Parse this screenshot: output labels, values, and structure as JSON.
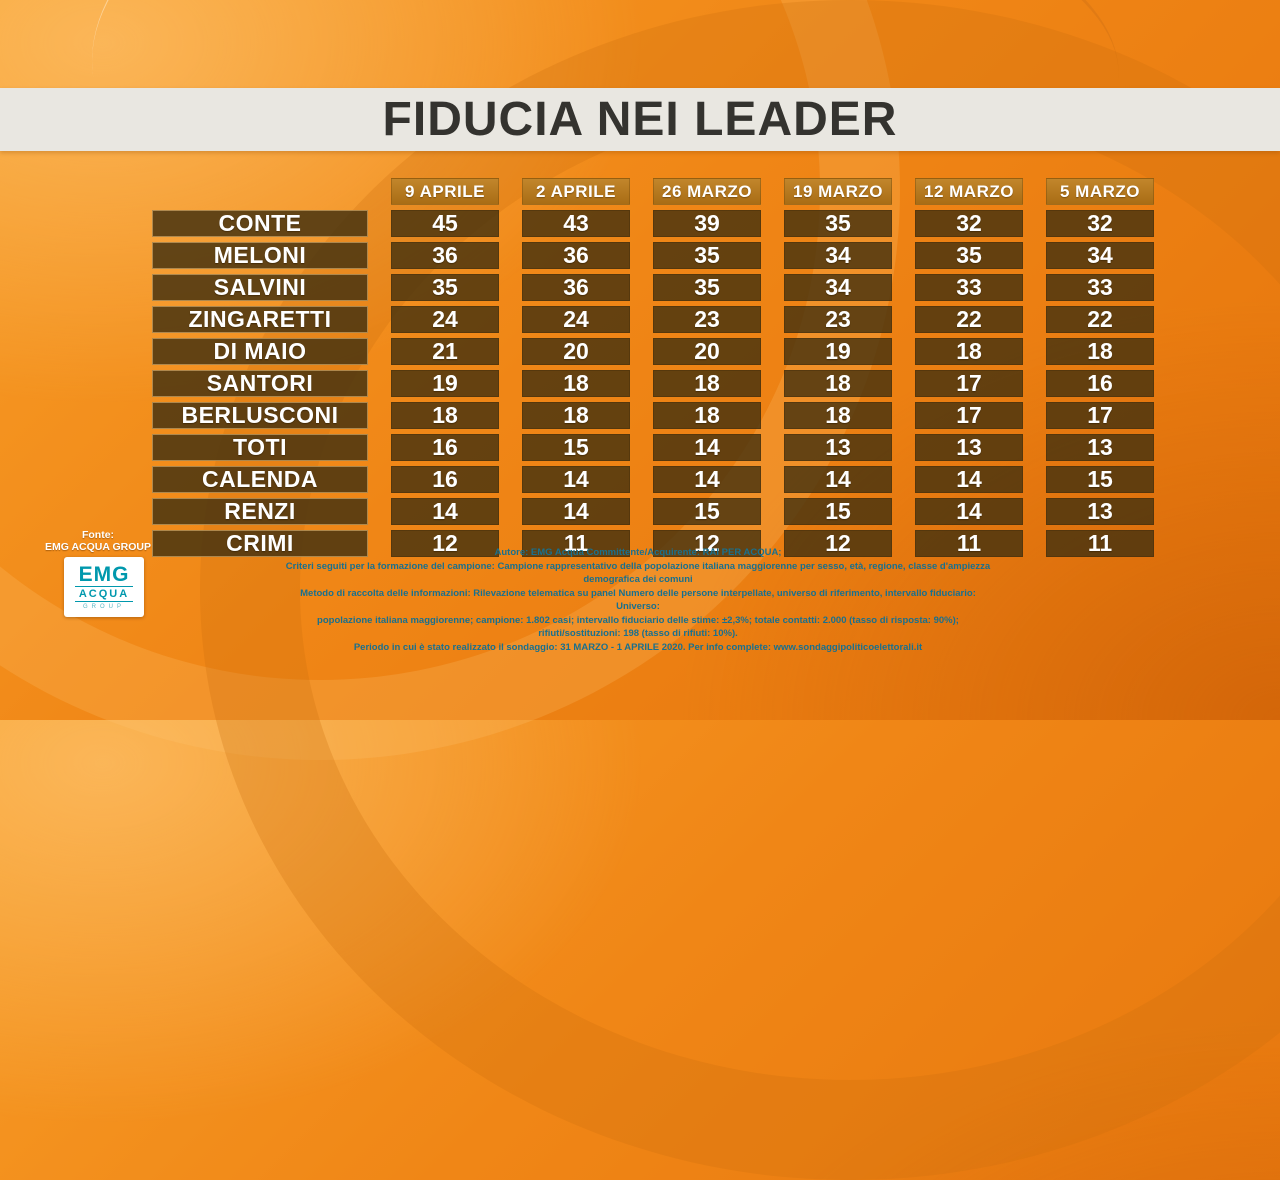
{
  "title": "FIDUCIA NEI LEADER",
  "source": {
    "label": "Fonte:",
    "name": "EMG ACQUA GROUP"
  },
  "logo": {
    "top": "EMG",
    "middle": "ACQUA",
    "bottom": "GROUP"
  },
  "colors": {
    "background_orange": "#f08616",
    "title_band": "#e9e7e1",
    "title_text": "#34332f",
    "header_cell": "#b0741e",
    "data_cell": "#4a3410",
    "cell_text": "#ffffff",
    "disclaimer_text": "#19708e",
    "logo_teal": "#0098ad"
  },
  "chart_data": {
    "type": "table",
    "title": "FIDUCIA NEI LEADER",
    "columns": [
      "9 APRILE",
      "2 APRILE",
      "26 MARZO",
      "19 MARZO",
      "12 MARZO",
      "5 MARZO"
    ],
    "rows": [
      {
        "leader": "CONTE",
        "values": [
          45,
          43,
          39,
          35,
          32,
          32
        ]
      },
      {
        "leader": "MELONI",
        "values": [
          36,
          36,
          35,
          34,
          35,
          34
        ]
      },
      {
        "leader": "SALVINI",
        "values": [
          35,
          36,
          35,
          34,
          33,
          33
        ]
      },
      {
        "leader": "ZINGARETTI",
        "values": [
          24,
          24,
          23,
          23,
          22,
          22
        ]
      },
      {
        "leader": "DI MAIO",
        "values": [
          21,
          20,
          20,
          19,
          18,
          18
        ]
      },
      {
        "leader": "SANTORI",
        "values": [
          19,
          18,
          18,
          18,
          17,
          16
        ]
      },
      {
        "leader": "BERLUSCONI",
        "values": [
          18,
          18,
          18,
          18,
          17,
          17
        ]
      },
      {
        "leader": "TOTI",
        "values": [
          16,
          15,
          14,
          13,
          13,
          13
        ]
      },
      {
        "leader": "CALENDA",
        "values": [
          16,
          14,
          14,
          14,
          14,
          15
        ]
      },
      {
        "leader": "RENZI",
        "values": [
          14,
          14,
          15,
          15,
          14,
          13
        ]
      },
      {
        "leader": "CRIMI",
        "values": [
          12,
          11,
          12,
          12,
          11,
          11
        ]
      }
    ]
  },
  "disclaimer": {
    "lines": [
      "Autore: EMG Acqua Committente/Acquirente: RAI PER ACQUA;",
      "Criteri seguiti per la formazione del campione: Campione rappresentativo della popolazione italiana maggiorenne per sesso, età, regione, classe d'ampiezza demografica dei comuni",
      "Metodo di raccolta delle informazioni: Rilevazione telematica su panel Numero delle persone interpellate, universo di riferimento, intervallo fiduciario: Universo:",
      "popolazione italiana maggiorenne; campione: 1.802 casi; intervallo fiduciario delle stime: ±2,3%; totale contatti: 2.000 (tasso di risposta: 90%); rifiuti/sostituzioni: 198 (tasso di rifiuti: 10%).",
      "Periodo in cui è stato realizzato il sondaggio: 31 MARZO - 1 APRILE 2020. Per info complete: www.sondaggipoliticoelettorali.it"
    ]
  }
}
